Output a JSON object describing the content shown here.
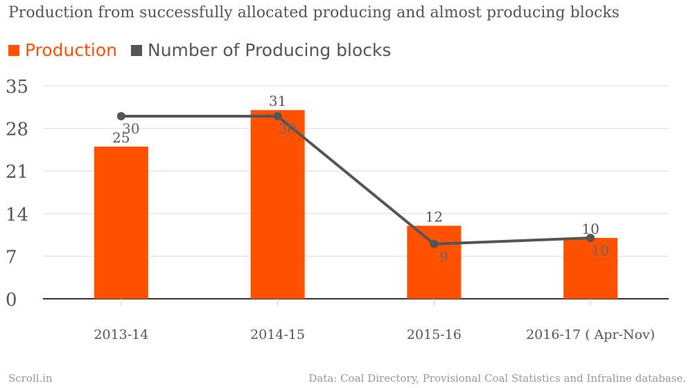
{
  "title": "Production from successfully allocated producing and almost producing blocks",
  "legend": {
    "production": "Production",
    "blocks": "Number of Producing blocks"
  },
  "colors": {
    "production": "#ff5100",
    "blocks": "#555555",
    "grid": "#dddddd",
    "text": "#555555"
  },
  "footer": {
    "source_left": "Scroll.in",
    "source_right": "Data: Coal Directory, Provisional Coal Statistics and Infraline database."
  },
  "chart_data": {
    "type": "bar",
    "categories": [
      "2013-14",
      "2014-15",
      "2015-16",
      "2016-17 ( Apr-Nov)"
    ],
    "series": [
      {
        "name": "Production",
        "type": "bar",
        "values": [
          25,
          31,
          12,
          10
        ]
      },
      {
        "name": "Number of Producing blocks",
        "type": "line",
        "values": [
          30,
          30,
          9,
          10
        ]
      }
    ],
    "ylim": [
      0,
      35
    ],
    "yticks": [
      0,
      7,
      14,
      21,
      28,
      35
    ],
    "grid": true,
    "legend_position": "top-left"
  }
}
